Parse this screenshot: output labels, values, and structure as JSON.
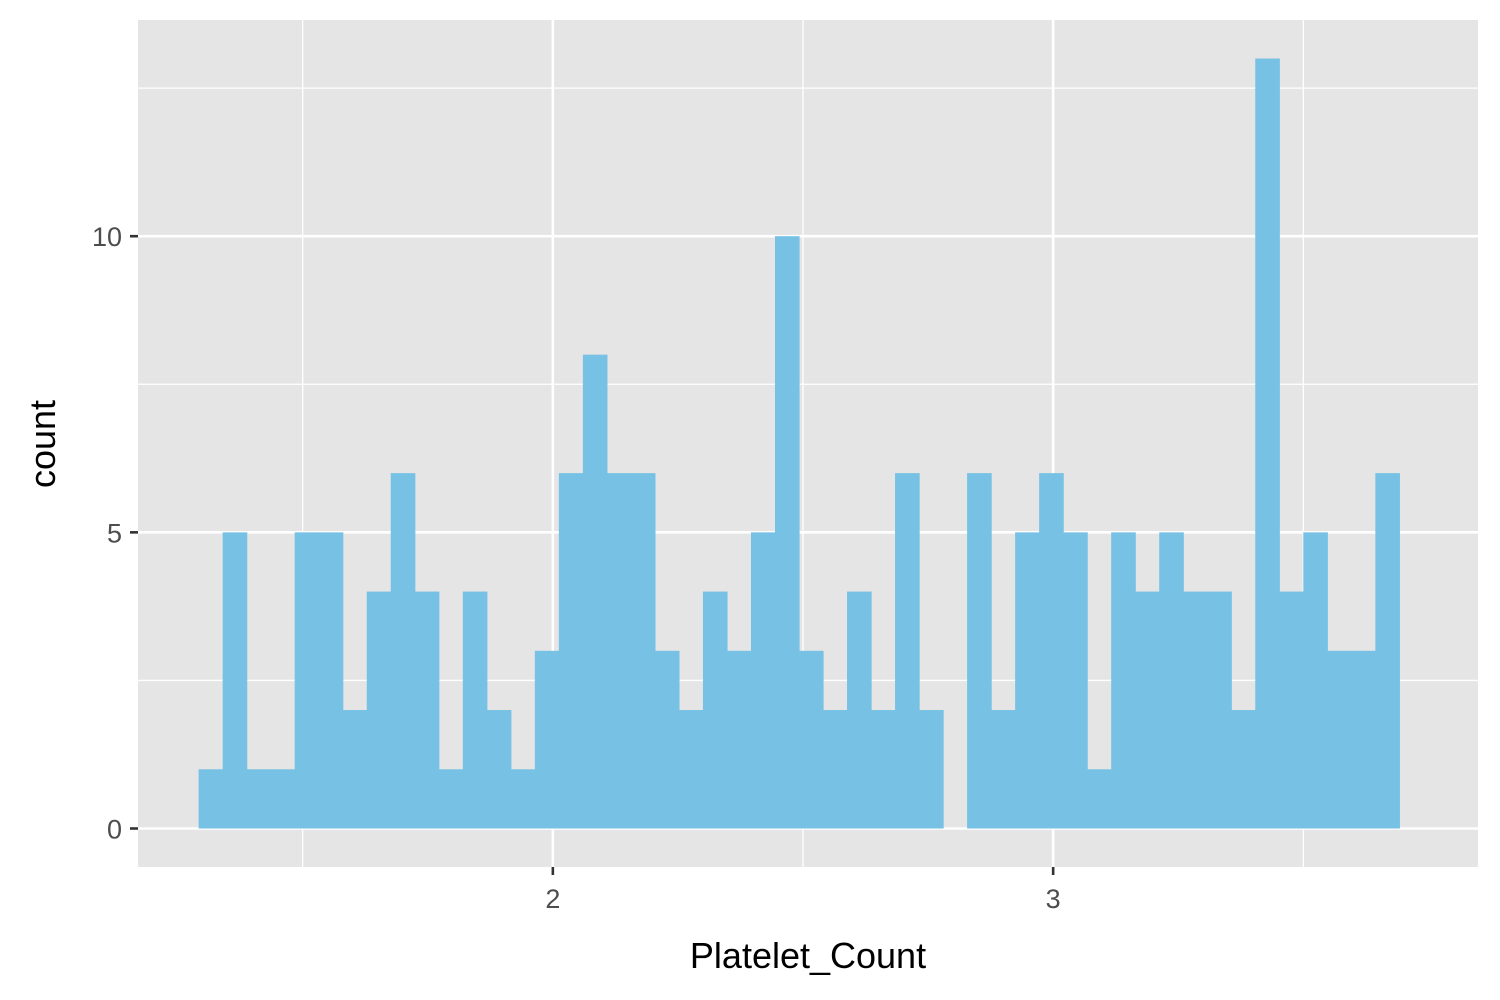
{
  "chart_data": {
    "type": "bar",
    "subtype": "histogram",
    "title": "",
    "xlabel": "Platelet_Count",
    "ylabel": "count",
    "xlim": [
      1.1708,
      3.8492
    ],
    "ylim": [
      -0.65,
      13.65
    ],
    "x_breaks": [
      2,
      3
    ],
    "x_minor_breaks": [
      1.5,
      2.5,
      3.5
    ],
    "y_breaks": [
      0,
      5,
      10
    ],
    "y_minor_breaks": [
      2.5,
      7.5,
      12.5
    ],
    "x_tick_labels": [
      "2",
      "3"
    ],
    "y_tick_labels": [
      "0",
      "5",
      "10"
    ],
    "grid": true,
    "bin_width": 0.048,
    "bin_starts": [
      1.292,
      1.34,
      1.388,
      1.436,
      1.484,
      1.532,
      1.58,
      1.628,
      1.676,
      1.724,
      1.772,
      1.82,
      1.868,
      1.916,
      1.964,
      2.012,
      2.06,
      2.108,
      2.156,
      2.204,
      2.252,
      2.3,
      2.348,
      2.396,
      2.444,
      2.492,
      2.54,
      2.588,
      2.636,
      2.684,
      2.732,
      2.78,
      2.828,
      2.876,
      2.924,
      2.972,
      3.02,
      3.068,
      3.116,
      3.164,
      3.212,
      3.26,
      3.308,
      3.356,
      3.404,
      3.452,
      3.5,
      3.548,
      3.596,
      3.644
    ],
    "values": [
      1,
      5,
      1,
      1,
      5,
      5,
      2,
      4,
      6,
      4,
      1,
      4,
      2,
      1,
      3,
      6,
      8,
      6,
      6,
      3,
      2,
      4,
      3,
      5,
      10,
      3,
      2,
      4,
      2,
      6,
      2,
      0,
      6,
      2,
      5,
      6,
      5,
      1,
      5,
      4,
      5,
      4,
      4,
      2,
      13,
      4,
      5,
      3,
      3,
      6
    ],
    "colors": {
      "bar_fill": "#77c2e4",
      "panel_background": "#e5e5e5",
      "grid_line": "#ffffff",
      "tick_mark": "#333333"
    }
  }
}
